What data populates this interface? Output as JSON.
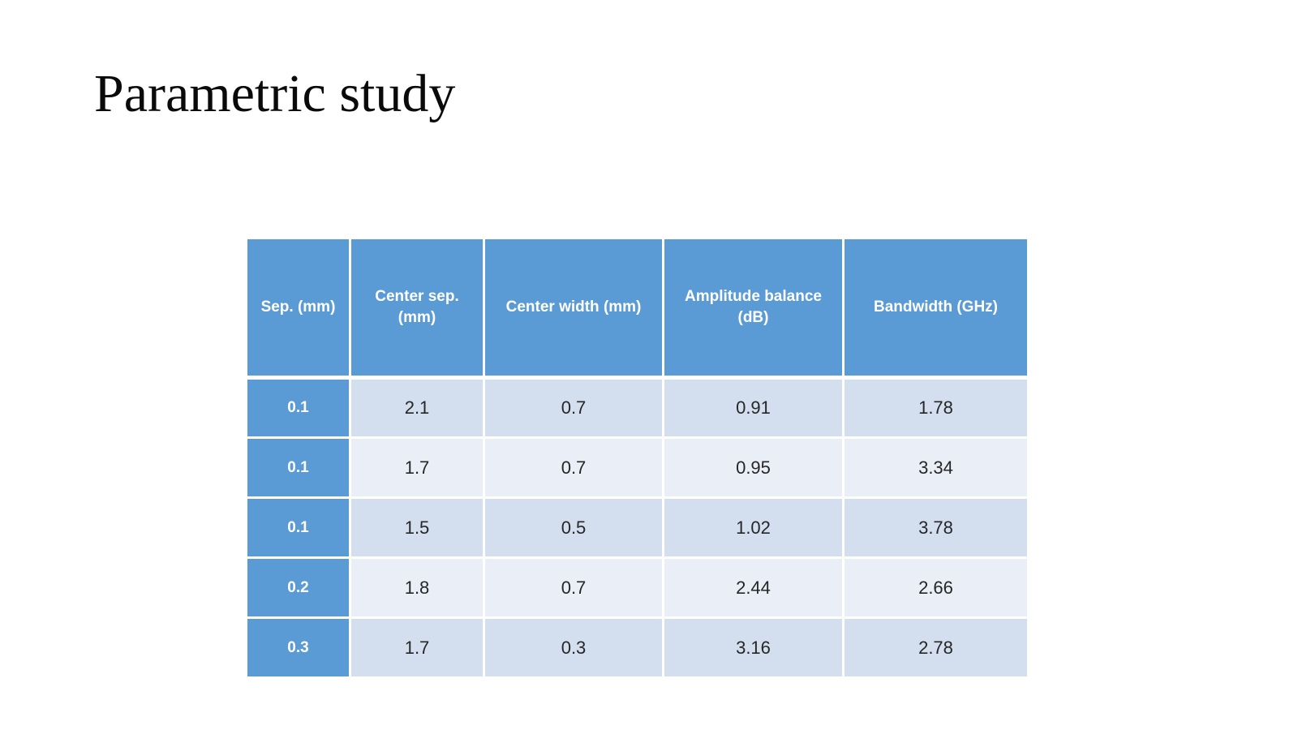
{
  "slide": {
    "title": "Parametric study"
  },
  "table": {
    "columns": [
      "Sep. (mm)",
      "Center sep. (mm)",
      "Center width (mm)",
      "Amplitude balance (dB)",
      "Bandwidth (GHz)"
    ],
    "rows": [
      [
        "0.1",
        "2.1",
        "0.7",
        "0.91",
        "1.78"
      ],
      [
        "0.1",
        "1.7",
        "0.7",
        "0.95",
        "3.34"
      ],
      [
        "0.1",
        "1.5",
        "0.5",
        "1.02",
        "3.78"
      ],
      [
        "0.2",
        "1.8",
        "0.7",
        "2.44",
        "2.66"
      ],
      [
        "0.3",
        "1.7",
        "0.3",
        "3.16",
        "2.78"
      ]
    ]
  },
  "chart_data": {
    "type": "table",
    "title": "Parametric study",
    "columns": [
      "Sep. (mm)",
      "Center sep. (mm)",
      "Center width (mm)",
      "Amplitude balance (dB)",
      "Bandwidth (GHz)"
    ],
    "rows": [
      [
        0.1,
        2.1,
        0.7,
        0.91,
        1.78
      ],
      [
        0.1,
        1.7,
        0.7,
        0.95,
        3.34
      ],
      [
        0.1,
        1.5,
        0.5,
        1.02,
        3.78
      ],
      [
        0.2,
        1.8,
        0.7,
        2.44,
        2.66
      ],
      [
        0.3,
        1.7,
        0.3,
        3.16,
        2.78
      ]
    ]
  },
  "colors": {
    "header_bg": "#5b9bd5",
    "header_text": "#ffffff",
    "row_odd": "#d3dfee",
    "row_even": "#e9eef7",
    "body_text": "#262626",
    "title_text": "#0a0a0a",
    "background": "#ffffff"
  }
}
